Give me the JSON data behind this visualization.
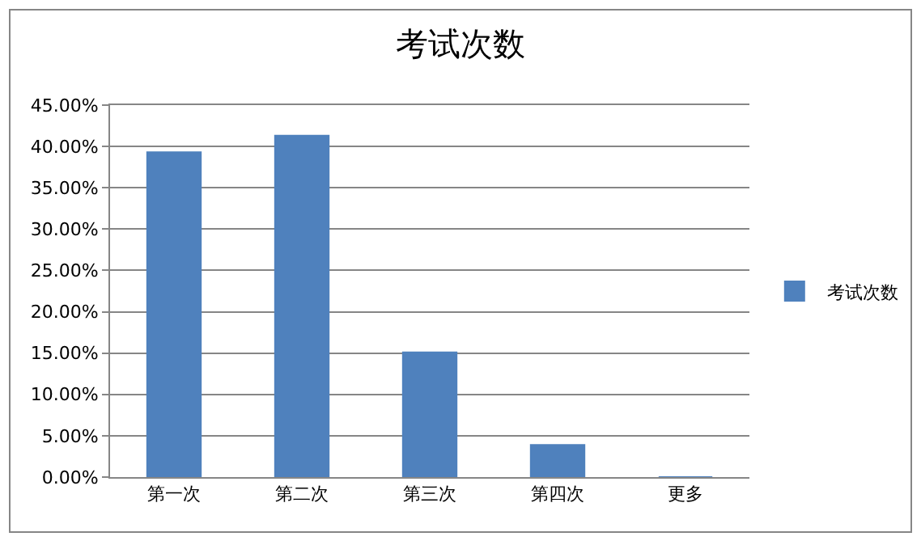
{
  "chart_data": {
    "type": "bar",
    "title": "考试次数",
    "categories": [
      "第一次",
      "第二次",
      "第三次",
      "第四次",
      "更多"
    ],
    "series": [
      {
        "name": "考试次数",
        "color": "#4f81bd",
        "values": [
          39.3,
          41.3,
          15.1,
          3.9,
          0
        ]
      }
    ],
    "ylim": [
      0,
      45
    ],
    "yticks": [
      {
        "value": 0,
        "label": "0.00%"
      },
      {
        "value": 5,
        "label": "5.00%"
      },
      {
        "value": 10,
        "label": "10.00%"
      },
      {
        "value": 15,
        "label": "15.00%"
      },
      {
        "value": 20,
        "label": "20.00%"
      },
      {
        "value": 25,
        "label": "25.00%"
      },
      {
        "value": 30,
        "label": "30.00%"
      },
      {
        "value": 35,
        "label": "35.00%"
      },
      {
        "value": 40,
        "label": "40.00%"
      },
      {
        "value": 45,
        "label": "45.00%"
      }
    ],
    "grid": "y",
    "legend": "right"
  }
}
